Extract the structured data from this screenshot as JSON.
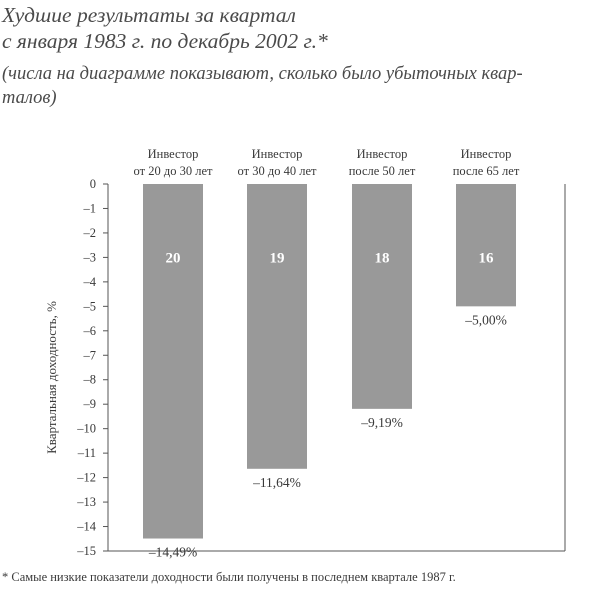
{
  "title_lines": [
    "Худшие результаты за квартал",
    "с января 1983 г. по декабрь 2002 г.*"
  ],
  "subtitle_lines": [
    "(числа на диаграмме показывают, сколько было убыточных квар-",
    "талов)"
  ],
  "footnote": "*  Самые низкие показатели доходности были получены в последнем квартале 1987 г.",
  "colors": {
    "bar": "#999999",
    "axis": "#555555",
    "text": "#3a3a3a"
  },
  "chart_data": {
    "type": "bar",
    "categories": [
      [
        "Инвестор",
        "от 20 до 30 лет"
      ],
      [
        "Инвестор",
        "от 30 до 40 лет"
      ],
      [
        "Инвестор",
        "после 50 лет"
      ],
      [
        "Инвестор",
        "после 65 лет"
      ]
    ],
    "values": [
      -14.49,
      -11.64,
      -9.19,
      -5.0
    ],
    "value_labels": [
      "–14,49%",
      "–11,64%",
      "–9,19%",
      "–5,00%"
    ],
    "counts": [
      "20",
      "19",
      "18",
      "16"
    ],
    "ylabel": "Квартальная доходность, %",
    "ylim": [
      -15,
      0
    ],
    "yticks": [
      0,
      -1,
      -2,
      -3,
      -4,
      -5,
      -6,
      -7,
      -8,
      -9,
      -10,
      -11,
      -12,
      -13,
      -14,
      -15
    ],
    "ytick_labels": [
      "0",
      "–1",
      "–2",
      "–3",
      "–4",
      "–5",
      "–6",
      "–7",
      "–8",
      "–9",
      "–10",
      "–11",
      "–12",
      "–13",
      "–14",
      "–15"
    ],
    "grid": false,
    "legend": "none"
  }
}
